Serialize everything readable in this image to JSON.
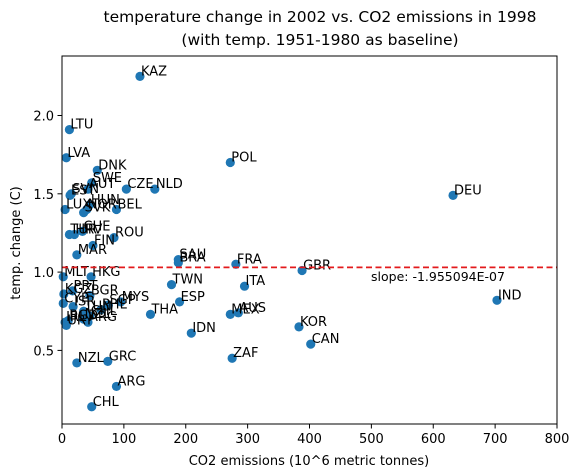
{
  "chart_data": {
    "type": "scatter",
    "title_line1": "temperature change in 2002 vs. CO2 emissions in 1998",
    "title_line2": "(with temp. 1951-1980 as baseline)",
    "xlabel": "CO2 emissions (10^6 metric tonnes)",
    "ylabel": "temp. change (C)",
    "xlim": [
      0,
      800
    ],
    "ylim": [
      0.03,
      2.38
    ],
    "xticks": [
      0,
      100,
      200,
      300,
      400,
      500,
      600,
      700,
      800
    ],
    "yticks": [
      0.5,
      1.0,
      1.5,
      2.0
    ],
    "ytick_labels": [
      "0.5",
      "1.0",
      "1.5",
      "2.0"
    ],
    "grid": false,
    "point_color": "#1f77b4",
    "points": [
      {
        "label": "KAZ",
        "x": 126,
        "y": 2.25
      },
      {
        "label": "LTU",
        "x": 12,
        "y": 1.91
      },
      {
        "label": "LVA",
        "x": 7,
        "y": 1.73
      },
      {
        "label": "DNK",
        "x": 57,
        "y": 1.65
      },
      {
        "label": "POL",
        "x": 272,
        "y": 1.7
      },
      {
        "label": "SWE",
        "x": 48,
        "y": 1.57
      },
      {
        "label": "AUT",
        "x": 42,
        "y": 1.53
      },
      {
        "label": "CZE",
        "x": 104,
        "y": 1.53
      },
      {
        "label": "NLD",
        "x": 150,
        "y": 1.53
      },
      {
        "label": "SVN",
        "x": 15,
        "y": 1.5
      },
      {
        "label": "EST",
        "x": 13,
        "y": 1.49
      },
      {
        "label": "DEU",
        "x": 632,
        "y": 1.49
      },
      {
        "label": "HUN",
        "x": 45,
        "y": 1.43
      },
      {
        "label": "LUX",
        "x": 5,
        "y": 1.4
      },
      {
        "label": "SVK",
        "x": 35,
        "y": 1.38
      },
      {
        "label": "NOR",
        "x": 40,
        "y": 1.4
      },
      {
        "label": "BEL",
        "x": 88,
        "y": 1.4
      },
      {
        "label": "CHE",
        "x": 33,
        "y": 1.26
      },
      {
        "label": "TUR",
        "x": 12,
        "y": 1.24
      },
      {
        "label": "HRV",
        "x": 20,
        "y": 1.24
      },
      {
        "label": "ROU",
        "x": 84,
        "y": 1.22
      },
      {
        "label": "FIN",
        "x": 50,
        "y": 1.17
      },
      {
        "label": "MAR",
        "x": 24,
        "y": 1.11
      },
      {
        "label": "SAU",
        "x": 188,
        "y": 1.08
      },
      {
        "label": "BRA",
        "x": 188,
        "y": 1.06
      },
      {
        "label": "FRA",
        "x": 281,
        "y": 1.05
      },
      {
        "label": "GBR",
        "x": 388,
        "y": 1.01
      },
      {
        "label": "HKG",
        "x": 47,
        "y": 0.97
      },
      {
        "label": "MLT",
        "x": 2,
        "y": 0.97
      },
      {
        "label": "TWN",
        "x": 177,
        "y": 0.92
      },
      {
        "label": "ITA",
        "x": 295,
        "y": 0.91
      },
      {
        "label": "PRT",
        "x": 17,
        "y": 0.88
      },
      {
        "label": "KGZ",
        "x": 3,
        "y": 0.86
      },
      {
        "label": "BGR",
        "x": 45,
        "y": 0.85
      },
      {
        "label": "IND",
        "x": 703,
        "y": 0.82
      },
      {
        "label": "ESP",
        "x": 190,
        "y": 0.81
      },
      {
        "label": "MYS",
        "x": 95,
        "y": 0.81
      },
      {
        "label": "CYP",
        "x": 2,
        "y": 0.8
      },
      {
        "label": "ISR",
        "x": 18,
        "y": 0.78
      },
      {
        "label": "SGP",
        "x": 75,
        "y": 0.79
      },
      {
        "label": "PHL",
        "x": 63,
        "y": 0.76
      },
      {
        "label": "TUN",
        "x": 35,
        "y": 0.75
      },
      {
        "label": "THA",
        "x": 143,
        "y": 0.73
      },
      {
        "label": "MEX",
        "x": 272,
        "y": 0.73
      },
      {
        "label": "AUS",
        "x": 285,
        "y": 0.74
      },
      {
        "label": "CHL",
        "x": 45,
        "y": 0.72
      },
      {
        "label": "IRL",
        "x": 5,
        "y": 0.68
      },
      {
        "label": "BGD",
        "x": 10,
        "y": 0.69
      },
      {
        "label": "NZL",
        "x": 35,
        "y": 0.7
      },
      {
        "label": "ARG",
        "x": 42,
        "y": 0.68
      },
      {
        "label": "URY",
        "x": 7,
        "y": 0.66
      },
      {
        "label": "KOR",
        "x": 383,
        "y": 0.65
      },
      {
        "label": "IDN",
        "x": 209,
        "y": 0.61
      },
      {
        "label": "CAN",
        "x": 402,
        "y": 0.54
      },
      {
        "label": "ZAF",
        "x": 275,
        "y": 0.45
      },
      {
        "label": "NZL",
        "x": 24,
        "y": 0.42
      },
      {
        "label": "GRC",
        "x": 74,
        "y": 0.43
      },
      {
        "label": "ARG",
        "x": 88,
        "y": 0.27
      },
      {
        "label": "CHL",
        "x": 48,
        "y": 0.14
      }
    ],
    "regression_line": {
      "y": 1.03,
      "color": "#e31a1c",
      "style": "dashed"
    },
    "annotation": "slope: -1.955094E-07"
  }
}
